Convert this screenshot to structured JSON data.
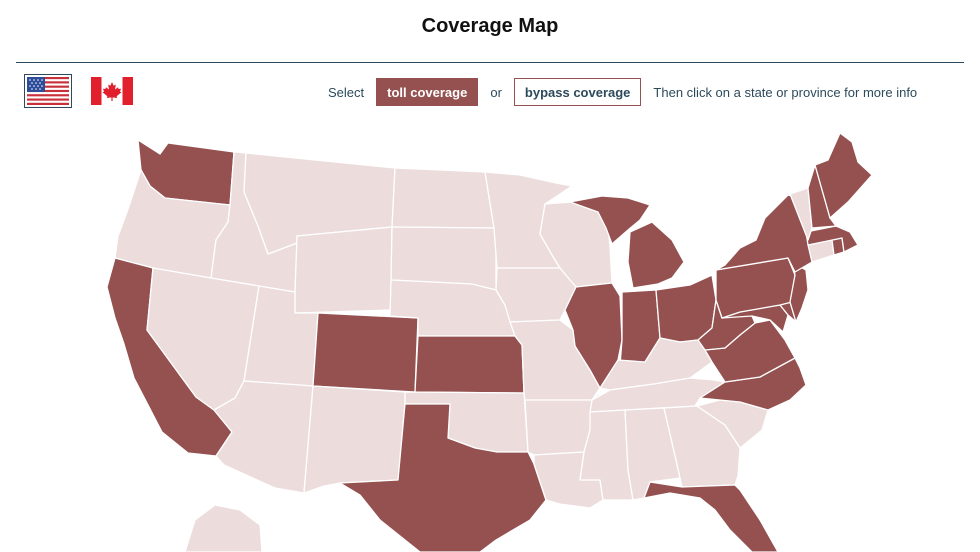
{
  "page": {
    "title": "Coverage Map"
  },
  "flags": {
    "us": "United States",
    "canada": "Canada"
  },
  "toolbar": {
    "select_label": "Select",
    "toll_label": "toll coverage",
    "or_label": "or",
    "bypass_label": "bypass coverage",
    "hint": "Then click on a state or province for more info"
  },
  "colors": {
    "covered": "#955050",
    "uncovered": "#ecdcdc",
    "border": "#ffffff",
    "accent": "#2c4a5c"
  },
  "mode": "toll coverage",
  "map": {
    "states": [
      {
        "code": "WA",
        "name": "Washington",
        "covered": true
      },
      {
        "code": "OR",
        "name": "Oregon",
        "covered": false
      },
      {
        "code": "CA",
        "name": "California",
        "covered": true
      },
      {
        "code": "ID",
        "name": "Idaho",
        "covered": false
      },
      {
        "code": "NV",
        "name": "Nevada",
        "covered": false
      },
      {
        "code": "MT",
        "name": "Montana",
        "covered": false
      },
      {
        "code": "WY",
        "name": "Wyoming",
        "covered": false
      },
      {
        "code": "UT",
        "name": "Utah",
        "covered": false
      },
      {
        "code": "AZ",
        "name": "Arizona",
        "covered": false
      },
      {
        "code": "CO",
        "name": "Colorado",
        "covered": true
      },
      {
        "code": "NM",
        "name": "New Mexico",
        "covered": false
      },
      {
        "code": "ND",
        "name": "North Dakota",
        "covered": false
      },
      {
        "code": "SD",
        "name": "South Dakota",
        "covered": false
      },
      {
        "code": "NE",
        "name": "Nebraska",
        "covered": false
      },
      {
        "code": "KS",
        "name": "Kansas",
        "covered": true
      },
      {
        "code": "OK",
        "name": "Oklahoma",
        "covered": false
      },
      {
        "code": "TX",
        "name": "Texas",
        "covered": true
      },
      {
        "code": "MN",
        "name": "Minnesota",
        "covered": false
      },
      {
        "code": "IA",
        "name": "Iowa",
        "covered": false
      },
      {
        "code": "MO",
        "name": "Missouri",
        "covered": false
      },
      {
        "code": "AR",
        "name": "Arkansas",
        "covered": false
      },
      {
        "code": "LA",
        "name": "Louisiana",
        "covered": false
      },
      {
        "code": "WI",
        "name": "Wisconsin",
        "covered": false
      },
      {
        "code": "IL",
        "name": "Illinois",
        "covered": true
      },
      {
        "code": "MI",
        "name": "Michigan",
        "covered": true
      },
      {
        "code": "IN",
        "name": "Indiana",
        "covered": true
      },
      {
        "code": "OH",
        "name": "Ohio",
        "covered": true
      },
      {
        "code": "KY",
        "name": "Kentucky",
        "covered": false
      },
      {
        "code": "TN",
        "name": "Tennessee",
        "covered": false
      },
      {
        "code": "MS",
        "name": "Mississippi",
        "covered": false
      },
      {
        "code": "AL",
        "name": "Alabama",
        "covered": false
      },
      {
        "code": "GA",
        "name": "Georgia",
        "covered": false
      },
      {
        "code": "FL",
        "name": "Florida",
        "covered": true
      },
      {
        "code": "SC",
        "name": "South Carolina",
        "covered": false
      },
      {
        "code": "NC",
        "name": "North Carolina",
        "covered": true
      },
      {
        "code": "VA",
        "name": "Virginia",
        "covered": true
      },
      {
        "code": "WV",
        "name": "West Virginia",
        "covered": true
      },
      {
        "code": "MD",
        "name": "Maryland",
        "covered": true
      },
      {
        "code": "DE",
        "name": "Delaware",
        "covered": true
      },
      {
        "code": "PA",
        "name": "Pennsylvania",
        "covered": true
      },
      {
        "code": "NJ",
        "name": "New Jersey",
        "covered": true
      },
      {
        "code": "NY",
        "name": "New York",
        "covered": true
      },
      {
        "code": "CT",
        "name": "Connecticut",
        "covered": false
      },
      {
        "code": "RI",
        "name": "Rhode Island",
        "covered": true
      },
      {
        "code": "MA",
        "name": "Massachusetts",
        "covered": true
      },
      {
        "code": "VT",
        "name": "Vermont",
        "covered": false
      },
      {
        "code": "NH",
        "name": "New Hampshire",
        "covered": true
      },
      {
        "code": "ME",
        "name": "Maine",
        "covered": true
      },
      {
        "code": "AK",
        "name": "Alaska",
        "covered": false
      }
    ]
  }
}
